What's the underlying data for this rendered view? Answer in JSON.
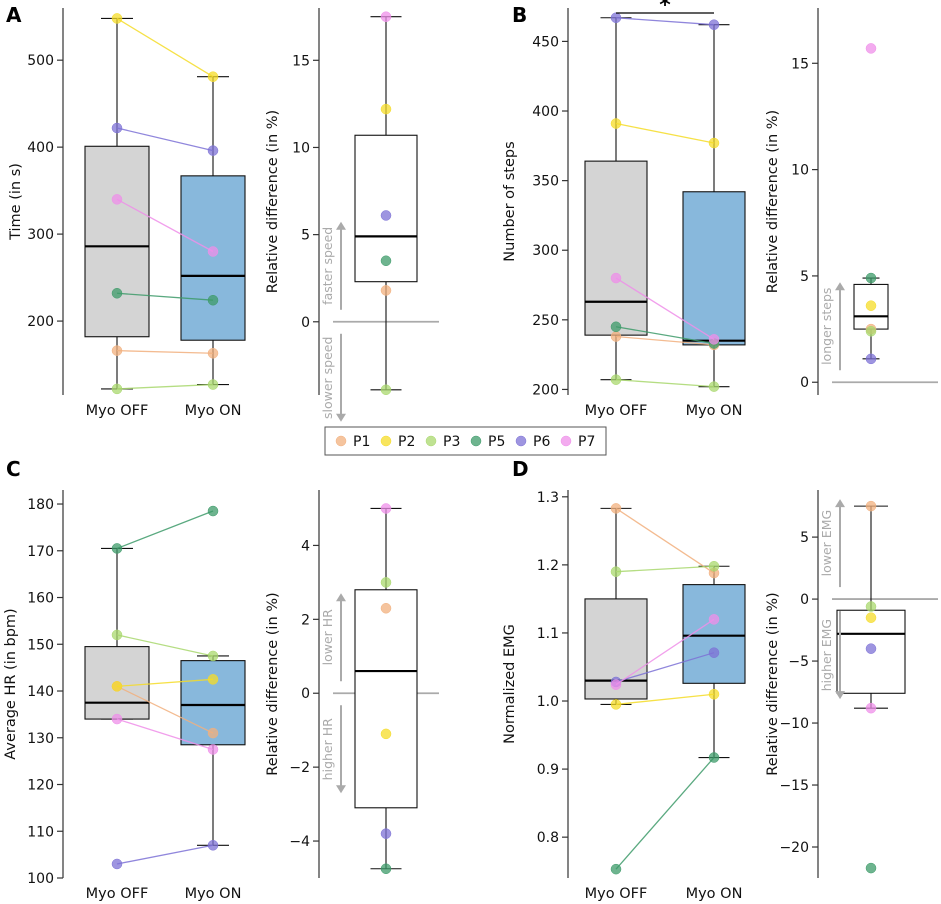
{
  "figure": {
    "colors": {
      "P1": "#f2b07e",
      "P2": "#f5dc28",
      "P3": "#a9d86e",
      "P5": "#3e9b6a",
      "P6": "#7d72d6",
      "P7": "#ef8fe9",
      "box_off": "#d4d4d4",
      "box_on": "#88b8dc",
      "axis": "#333333",
      "annot": "#aaaaaa"
    },
    "legend": [
      "P1",
      "P2",
      "P3",
      "P5",
      "P6",
      "P7"
    ],
    "significance_marker": "*"
  },
  "chart_data": [
    {
      "panel": "A",
      "kind": "paired_box",
      "type": "box",
      "ylabel": "Time (in s)",
      "ylim": [
        115,
        560
      ],
      "yticks": [
        200,
        300,
        400,
        500
      ],
      "categories": [
        "Myo OFF",
        "Myo ON"
      ],
      "box": [
        {
          "category": "Myo OFF",
          "whislo": 122,
          "q1": 182,
          "median": 286,
          "q3": 401,
          "whishi": 548
        },
        {
          "category": "Myo ON",
          "whislo": 127,
          "q1": 178,
          "median": 252,
          "q3": 367,
          "whishi": 481
        }
      ],
      "series": [
        {
          "name": "P1",
          "values": [
            166,
            163
          ]
        },
        {
          "name": "P2",
          "values": [
            548,
            481
          ]
        },
        {
          "name": "P3",
          "values": [
            122,
            127
          ]
        },
        {
          "name": "P5",
          "values": [
            232,
            224
          ]
        },
        {
          "name": "P6",
          "values": [
            422,
            396
          ]
        },
        {
          "name": "P7",
          "values": [
            340,
            280
          ]
        }
      ]
    },
    {
      "panel": "A",
      "kind": "single_box",
      "type": "box",
      "ylabel": "Relative difference (in %)",
      "ylim": [
        -4.2,
        18.0
      ],
      "yticks": [
        0,
        5,
        10,
        15
      ],
      "box": {
        "whislo": -3.9,
        "q1": 2.3,
        "median": 4.9,
        "q3": 10.7,
        "whishi": 17.5
      },
      "points": [
        {
          "name": "P1",
          "value": 1.8
        },
        {
          "name": "P2",
          "value": 12.2
        },
        {
          "name": "P3",
          "value": -3.9
        },
        {
          "name": "P5",
          "value": 3.5
        },
        {
          "name": "P6",
          "value": 6.1
        },
        {
          "name": "P7",
          "value": 17.5
        }
      ],
      "annotations": {
        "up": "faster speed",
        "down": "slower speed"
      }
    },
    {
      "panel": "B",
      "kind": "paired_box",
      "type": "box",
      "ylabel": "Number of steps",
      "ylim": [
        196,
        474
      ],
      "yticks": [
        200,
        250,
        300,
        350,
        400,
        450
      ],
      "categories": [
        "Myo OFF",
        "Myo ON"
      ],
      "box": [
        {
          "category": "Myo OFF",
          "whislo": 207,
          "q1": 239,
          "median": 263,
          "q3": 364,
          "whishi": 467
        },
        {
          "category": "Myo ON",
          "whislo": 202,
          "q1": 232,
          "median": 235,
          "q3": 342,
          "whishi": 462
        }
      ],
      "series": [
        {
          "name": "P1",
          "values": [
            238,
            232
          ]
        },
        {
          "name": "P2",
          "values": [
            391,
            377
          ]
        },
        {
          "name": "P3",
          "values": [
            207,
            202
          ]
        },
        {
          "name": "P5",
          "values": [
            245,
            233
          ]
        },
        {
          "name": "P6",
          "values": [
            467,
            462
          ]
        },
        {
          "name": "P7",
          "values": [
            280,
            236
          ]
        }
      ],
      "significance": {
        "between": [
          "Myo OFF",
          "Myo ON"
        ],
        "label": "*"
      }
    },
    {
      "panel": "B",
      "kind": "single_box",
      "type": "box",
      "ylabel": "Relative difference (in %)",
      "ylim": [
        -0.6,
        17.6
      ],
      "yticks": [
        0,
        5,
        10,
        15
      ],
      "box": {
        "whislo": 1.1,
        "q1": 2.5,
        "median": 3.1,
        "q3": 4.6,
        "whishi": 4.9
      },
      "points": [
        {
          "name": "P1",
          "value": 2.5
        },
        {
          "name": "P2",
          "value": 3.6
        },
        {
          "name": "P3",
          "value": 2.4
        },
        {
          "name": "P5",
          "value": 4.9
        },
        {
          "name": "P6",
          "value": 1.1
        },
        {
          "name": "P7",
          "value": 15.7
        }
      ],
      "annotations": {
        "up": "longer steps"
      }
    },
    {
      "panel": "C",
      "kind": "paired_box",
      "type": "box",
      "ylabel": "Average HR (in bpm)",
      "ylim": [
        100,
        183
      ],
      "yticks": [
        100,
        110,
        120,
        130,
        140,
        150,
        160,
        170,
        180
      ],
      "categories": [
        "Myo OFF",
        "Myo ON"
      ],
      "box": [
        {
          "category": "Myo OFF",
          "whislo": 134,
          "q1": 134,
          "median": 137.5,
          "q3": 149.5,
          "whishi": 170.5
        },
        {
          "category": "Myo ON",
          "whislo": 107,
          "q1": 128.5,
          "median": 137,
          "q3": 146.5,
          "whishi": 147.5
        }
      ],
      "series": [
        {
          "name": "P1",
          "values": [
            141,
            131
          ]
        },
        {
          "name": "P2",
          "values": [
            141,
            142.5
          ]
        },
        {
          "name": "P3",
          "values": [
            152,
            147.5
          ]
        },
        {
          "name": "P5",
          "values": [
            170.5,
            178.5
          ]
        },
        {
          "name": "P6",
          "values": [
            103,
            107
          ]
        },
        {
          "name": "P7",
          "values": [
            134,
            127.5
          ]
        }
      ]
    },
    {
      "panel": "C",
      "kind": "single_box",
      "type": "box",
      "ylabel": "Relative difference (in %)",
      "ylim": [
        -5.0,
        5.5
      ],
      "yticks": [
        -4,
        -2,
        0,
        2,
        4
      ],
      "box": {
        "whislo": -4.75,
        "q1": -3.1,
        "median": 0.6,
        "q3": 2.8,
        "whishi": 5.0
      },
      "points": [
        {
          "name": "P1",
          "value": 2.3
        },
        {
          "name": "P2",
          "value": -1.1
        },
        {
          "name": "P3",
          "value": 3.0
        },
        {
          "name": "P5",
          "value": -4.75
        },
        {
          "name": "P6",
          "value": -3.8
        },
        {
          "name": "P7",
          "value": 5.0
        }
      ],
      "annotations": {
        "up": "lower HR",
        "down": "higher HR"
      }
    },
    {
      "panel": "D",
      "kind": "paired_box",
      "type": "box",
      "ylabel": "Normalized EMG",
      "ylim": [
        0.74,
        1.31
      ],
      "yticks": [
        0.8,
        0.9,
        1.0,
        1.1,
        1.2,
        1.3
      ],
      "categories": [
        "Myo OFF",
        "Myo ON"
      ],
      "box": [
        {
          "category": "Myo OFF",
          "whislo": 0.995,
          "q1": 1.003,
          "median": 1.03,
          "q3": 1.15,
          "whishi": 1.283
        },
        {
          "category": "Myo ON",
          "whislo": 0.917,
          "q1": 1.026,
          "median": 1.096,
          "q3": 1.171,
          "whishi": 1.198
        }
      ],
      "series": [
        {
          "name": "P1",
          "values": [
            1.283,
            1.188
          ]
        },
        {
          "name": "P2",
          "values": [
            0.995,
            1.01
          ]
        },
        {
          "name": "P3",
          "values": [
            1.19,
            1.198
          ]
        },
        {
          "name": "P5",
          "values": [
            0.753,
            0.917
          ]
        },
        {
          "name": "P6",
          "values": [
            1.028,
            1.071
          ]
        },
        {
          "name": "P7",
          "values": [
            1.024,
            1.12
          ]
        }
      ]
    },
    {
      "panel": "D",
      "kind": "single_box",
      "type": "box",
      "ylabel": "Relative difference (in %)",
      "ylim": [
        -22.5,
        8.8
      ],
      "yticks": [
        -20,
        -15,
        -10,
        -5,
        0,
        5
      ],
      "box": {
        "whislo": -8.8,
        "q1": -7.6,
        "median": -2.8,
        "q3": -0.9,
        "whishi": 7.5
      },
      "points": [
        {
          "name": "P1",
          "value": 7.5
        },
        {
          "name": "P2",
          "value": -1.5
        },
        {
          "name": "P3",
          "value": -0.6
        },
        {
          "name": "P5",
          "value": -21.7
        },
        {
          "name": "P6",
          "value": -4.0
        },
        {
          "name": "P7",
          "value": -8.8
        }
      ],
      "annotations": {
        "up": "lower EMG",
        "down": "higher EMG"
      }
    }
  ]
}
